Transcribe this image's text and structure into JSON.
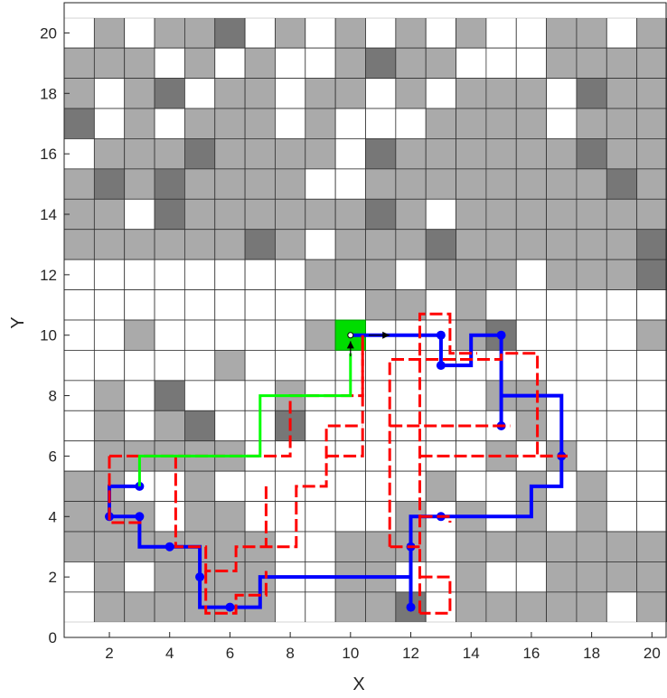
{
  "chart_data": {
    "type": "heatmap",
    "xlabel": "X",
    "ylabel": "Y",
    "xlim": [
      0.5,
      20.5
    ],
    "ylim": [
      0,
      21
    ],
    "xticks": [
      "2",
      "4",
      "6",
      "8",
      "10",
      "12",
      "14",
      "16",
      "18",
      "20"
    ],
    "yticks": [
      "0",
      "2",
      "4",
      "6",
      "8",
      "10",
      "12",
      "14",
      "16",
      "18",
      "20"
    ],
    "grid": true,
    "cell_colors": {
      "0": "#ffffff",
      "1": "#aaaaaa",
      "2": "#777777"
    },
    "grid_rows_top_to_bottom": [
      [
        0,
        1,
        0,
        1,
        1,
        2,
        0,
        1,
        0,
        1,
        0,
        1,
        0,
        1,
        0,
        0,
        1,
        1,
        0,
        1
      ],
      [
        1,
        1,
        1,
        0,
        1,
        0,
        1,
        0,
        0,
        1,
        2,
        1,
        1,
        0,
        0,
        0,
        1,
        1,
        1,
        1
      ],
      [
        1,
        0,
        1,
        2,
        0,
        1,
        1,
        0,
        1,
        1,
        0,
        1,
        0,
        1,
        1,
        1,
        0,
        2,
        1,
        1
      ],
      [
        2,
        0,
        1,
        0,
        1,
        1,
        1,
        0,
        1,
        0,
        0,
        0,
        1,
        1,
        1,
        1,
        0,
        1,
        1,
        1
      ],
      [
        0,
        1,
        1,
        1,
        2,
        1,
        1,
        1,
        1,
        0,
        2,
        1,
        1,
        1,
        1,
        1,
        1,
        2,
        1,
        1
      ],
      [
        1,
        2,
        1,
        2,
        1,
        1,
        1,
        1,
        0,
        0,
        1,
        1,
        1,
        1,
        1,
        1,
        1,
        1,
        2,
        1
      ],
      [
        1,
        1,
        0,
        2,
        1,
        1,
        1,
        1,
        1,
        1,
        2,
        1,
        0,
        1,
        1,
        1,
        1,
        1,
        1,
        1
      ],
      [
        1,
        1,
        1,
        1,
        1,
        1,
        2,
        1,
        0,
        1,
        1,
        1,
        2,
        1,
        1,
        1,
        1,
        1,
        1,
        2
      ],
      [
        0,
        0,
        0,
        0,
        0,
        0,
        0,
        0,
        1,
        1,
        1,
        0,
        1,
        1,
        1,
        0,
        1,
        1,
        1,
        2
      ],
      [
        0,
        0,
        0,
        0,
        0,
        0,
        0,
        0,
        0,
        0,
        1,
        1,
        0,
        1,
        0,
        0,
        0,
        0,
        0,
        0
      ],
      [
        0,
        0,
        1,
        0,
        0,
        0,
        0,
        0,
        1,
        0,
        0,
        0,
        0,
        1,
        2,
        0,
        0,
        0,
        0,
        1
      ],
      [
        0,
        0,
        0,
        0,
        0,
        1,
        0,
        0,
        0,
        0,
        0,
        0,
        0,
        0,
        0,
        0,
        0,
        0,
        0,
        0
      ],
      [
        0,
        1,
        0,
        2,
        0,
        0,
        0,
        1,
        0,
        0,
        0,
        0,
        0,
        0,
        1,
        1,
        0,
        0,
        0,
        0
      ],
      [
        0,
        1,
        0,
        1,
        2,
        0,
        0,
        2,
        0,
        0,
        0,
        0,
        0,
        0,
        0,
        1,
        0,
        0,
        0,
        0
      ],
      [
        0,
        1,
        1,
        1,
        1,
        1,
        0,
        0,
        0,
        0,
        0,
        0,
        0,
        0,
        1,
        0,
        1,
        0,
        0,
        0
      ],
      [
        1,
        1,
        0,
        0,
        1,
        0,
        0,
        0,
        0,
        0,
        0,
        0,
        1,
        0,
        0,
        1,
        0,
        1,
        0,
        0
      ],
      [
        1,
        1,
        1,
        0,
        1,
        1,
        0,
        0,
        0,
        0,
        0,
        1,
        0,
        1,
        0,
        1,
        0,
        1,
        0,
        0
      ],
      [
        1,
        1,
        1,
        1,
        1,
        1,
        1,
        0,
        0,
        1,
        1,
        1,
        0,
        1,
        1,
        1,
        1,
        1,
        1,
        1
      ],
      [
        0,
        1,
        0,
        1,
        1,
        1,
        1,
        0,
        0,
        1,
        1,
        0,
        0,
        1,
        0,
        0,
        1,
        1,
        1,
        1
      ],
      [
        0,
        1,
        1,
        1,
        1,
        1,
        1,
        0,
        0,
        1,
        1,
        2,
        0,
        1,
        1,
        1,
        1,
        1,
        0,
        1
      ]
    ],
    "goal_cell": {
      "x": 10,
      "y": 10,
      "color": "#00dd00"
    },
    "series": [
      {
        "color": "#0000ff",
        "style": "solid",
        "linewidth": 4,
        "paths": [
          [
            [
              2,
              4
            ],
            [
              2,
              5
            ],
            [
              3,
              5
            ]
          ],
          [
            [
              2,
              4
            ],
            [
              3,
              4
            ],
            [
              3,
              3
            ],
            [
              4,
              3
            ],
            [
              5,
              3
            ],
            [
              5,
              2
            ],
            [
              5,
              1
            ],
            [
              6,
              1
            ],
            [
              7,
              1
            ],
            [
              7,
              2
            ],
            [
              12,
              2
            ],
            [
              12,
              3
            ],
            [
              12,
              4
            ],
            [
              13,
              4
            ],
            [
              16,
              4
            ],
            [
              16,
              5
            ],
            [
              17,
              5
            ],
            [
              17,
              6
            ],
            [
              17,
              8
            ],
            [
              15,
              8
            ],
            [
              15,
              7
            ],
            [
              15,
              10
            ],
            [
              14,
              10
            ],
            [
              14,
              9
            ],
            [
              13,
              9
            ],
            [
              13,
              10
            ],
            [
              10,
              10
            ]
          ],
          [
            [
              12,
              1
            ],
            [
              12,
              2
            ]
          ]
        ],
        "markers": [
          [
            3,
            5
          ],
          [
            2,
            4
          ],
          [
            3,
            4
          ],
          [
            4,
            3
          ],
          [
            5,
            2
          ],
          [
            6,
            1
          ],
          [
            12,
            3
          ],
          [
            12,
            1
          ],
          [
            13,
            4
          ],
          [
            17,
            6
          ],
          [
            15,
            7
          ],
          [
            15,
            10
          ],
          [
            13,
            9
          ],
          [
            13,
            10
          ]
        ]
      },
      {
        "color": "#ff0000",
        "style": "dashed",
        "linewidth": 3,
        "paths": [
          [
            [
              2,
              6
            ],
            [
              8,
              6
            ],
            [
              8,
              8
            ],
            [
              10.4,
              8
            ],
            [
              10.4,
              10
            ]
          ],
          [
            [
              2,
              6
            ],
            [
              2,
              3.8
            ],
            [
              3.2,
              3.8
            ]
          ],
          [
            [
              4.2,
              6
            ],
            [
              4.2,
              3
            ],
            [
              5.2,
              3
            ],
            [
              5.2,
              2.2
            ],
            [
              6.2,
              2.2
            ],
            [
              6.2,
              3
            ],
            [
              8.2,
              3
            ],
            [
              8.2,
              5
            ],
            [
              9.2,
              5
            ],
            [
              9.2,
              7
            ],
            [
              10.4,
              7
            ]
          ],
          [
            [
              5.2,
              2.2
            ],
            [
              5.2,
              0.8
            ],
            [
              6.2,
              0.8
            ],
            [
              6.2,
              1.4
            ],
            [
              7.2,
              1.4
            ],
            [
              7.2,
              2.2
            ]
          ],
          [
            [
              7.2,
              5
            ],
            [
              7.2,
              3
            ]
          ],
          [
            [
              9.2,
              6
            ],
            [
              10.4,
              6
            ],
            [
              10.4,
              10
            ]
          ],
          [
            [
              11.3,
              3
            ],
            [
              11.3,
              9.2
            ],
            [
              15,
              9.2
            ],
            [
              15,
              9.4
            ],
            [
              16.2,
              9.4
            ],
            [
              16.2,
              6
            ],
            [
              17.2,
              6
            ]
          ],
          [
            [
              12.3,
              3
            ],
            [
              11.3,
              3
            ]
          ],
          [
            [
              12.3,
              0.8
            ],
            [
              12.3,
              10.7
            ],
            [
              13.3,
              10.7
            ],
            [
              13.3,
              9.4
            ],
            [
              14.2,
              9.4
            ]
          ],
          [
            [
              12.3,
              2
            ],
            [
              13.3,
              2
            ],
            [
              13.3,
              0.8
            ],
            [
              12.3,
              0.8
            ]
          ],
          [
            [
              11.3,
              7
            ],
            [
              15.3,
              7
            ]
          ],
          [
            [
              12.3,
              6
            ],
            [
              17.2,
              6
            ]
          ],
          [
            [
              12.3,
              4
            ],
            [
              13.3,
              4
            ],
            [
              13.3,
              3.8
            ]
          ]
        ]
      },
      {
        "color": "#00ff00",
        "style": "solid",
        "linewidth": 3,
        "paths": [
          [
            [
              3,
              5
            ],
            [
              3,
              6
            ],
            [
              7,
              6
            ],
            [
              7,
              8
            ],
            [
              10,
              8
            ],
            [
              10,
              9.4
            ]
          ]
        ]
      }
    ],
    "arrows": [
      {
        "from": [
          10.6,
          10
        ],
        "to": [
          11.3,
          10
        ],
        "color": "#000000"
      },
      {
        "from": [
          10,
          9.3
        ],
        "to": [
          10,
          9.8
        ],
        "color": "#000000"
      }
    ]
  }
}
